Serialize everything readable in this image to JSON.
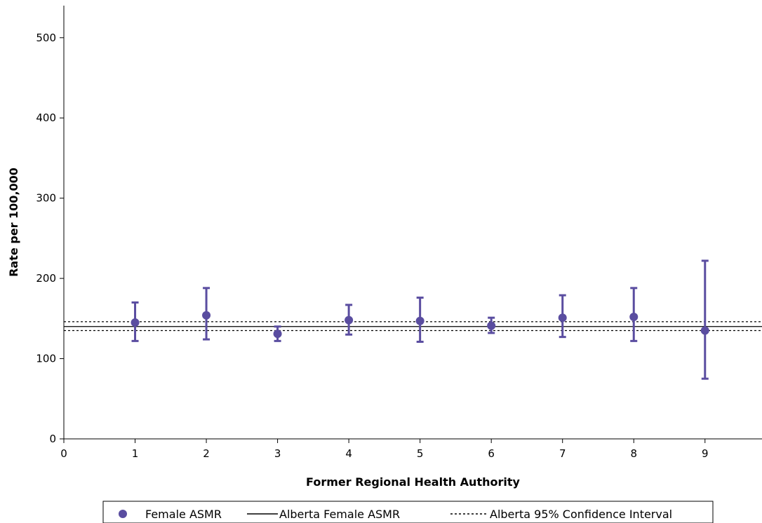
{
  "chart_data": {
    "type": "scatter",
    "title": "",
    "xlabel": "Former Regional Health Authority",
    "ylabel": "Rate per 100,000",
    "xlim": [
      0,
      9.8
    ],
    "ylim": [
      0,
      540
    ],
    "x_ticks": [
      0,
      1,
      2,
      3,
      4,
      5,
      6,
      7,
      8,
      9
    ],
    "y_ticks": [
      0,
      100,
      200,
      300,
      400,
      500
    ],
    "grid": false,
    "legend_position": "bottom",
    "colors": {
      "marker": "#5a4da0",
      "reference": "#000000"
    },
    "series": [
      {
        "name": "Female ASMR",
        "kind": "points-with-error-bars",
        "x": [
          1,
          2,
          3,
          4,
          5,
          6,
          7,
          8,
          9
        ],
        "y": [
          145,
          154,
          131,
          148,
          147,
          141,
          151,
          152,
          135
        ],
        "lower": [
          122,
          124,
          122,
          130,
          121,
          132,
          127,
          122,
          75
        ],
        "upper": [
          170,
          188,
          140,
          167,
          176,
          151,
          179,
          188,
          222
        ]
      },
      {
        "name": "Alberta Female ASMR",
        "kind": "reference-line",
        "y": 140,
        "style": "solid"
      },
      {
        "name": "Alberta 95% Confidence Interval",
        "kind": "reference-band",
        "y": [
          135,
          146
        ],
        "style": "dotted"
      }
    ]
  }
}
